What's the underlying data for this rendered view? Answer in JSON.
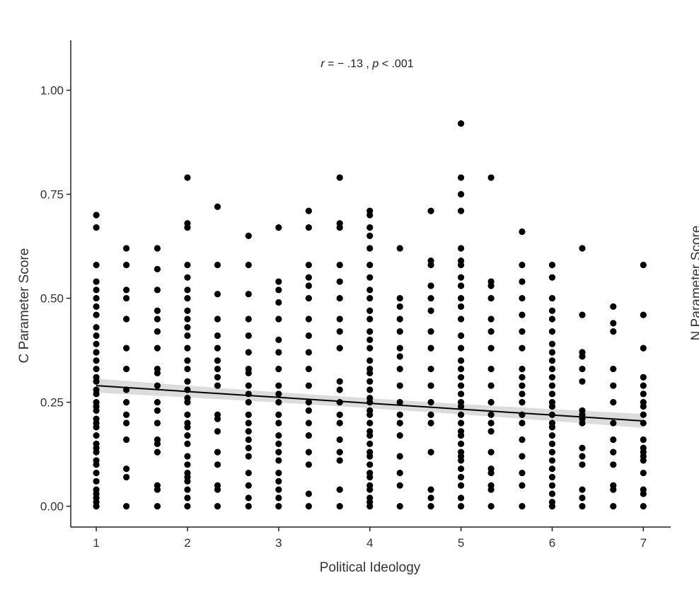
{
  "chart_data": [
    {
      "type": "scatter",
      "annotation": {
        "r_symbol": "r",
        "r_text": " = − .13 , ",
        "p_symbol": "p",
        "p_text": " < .001"
      },
      "xlabel": "Political Ideology",
      "ylabel": "C Parameter Score",
      "xlim": [
        0.72,
        7.3
      ],
      "ylim": [
        -0.05,
        1.12
      ],
      "x_ticks": [
        1,
        2,
        3,
        4,
        5,
        6,
        7
      ],
      "y_ticks": [
        0.0,
        0.25,
        0.5,
        0.75,
        1.0
      ],
      "y_tick_labels": [
        "0.00",
        "0.25",
        "0.50",
        "0.75",
        "1.00"
      ],
      "grid": false,
      "point_color": "#000000",
      "trend_line": {
        "x": [
          1,
          7
        ],
        "y": [
          0.29,
          0.205
        ],
        "color": "#000000",
        "band_color": "#d6d6d6"
      },
      "point_columns": [
        {
          "x": 1,
          "y": [
            0.0,
            0.01,
            0.02,
            0.03,
            0.04,
            0.06,
            0.08,
            0.1,
            0.11,
            0.13,
            0.14,
            0.15,
            0.17,
            0.19,
            0.2,
            0.21,
            0.23,
            0.24,
            0.25,
            0.27,
            0.28,
            0.3,
            0.31,
            0.33,
            0.35,
            0.37,
            0.39,
            0.41,
            0.43,
            0.46,
            0.48,
            0.5,
            0.52,
            0.54,
            0.58,
            0.67,
            0.7
          ]
        },
        {
          "x": 1.33,
          "y": [
            0.0,
            0.07,
            0.09,
            0.16,
            0.2,
            0.22,
            0.25,
            0.28,
            0.33,
            0.38,
            0.45,
            0.5,
            0.52,
            0.58,
            0.62
          ]
        },
        {
          "x": 1.67,
          "y": [
            0.0,
            0.04,
            0.05,
            0.13,
            0.15,
            0.16,
            0.2,
            0.23,
            0.25,
            0.29,
            0.32,
            0.33,
            0.38,
            0.42,
            0.45,
            0.47,
            0.52,
            0.57,
            0.62
          ]
        },
        {
          "x": 2,
          "y": [
            0.0,
            0.02,
            0.04,
            0.06,
            0.07,
            0.08,
            0.1,
            0.12,
            0.15,
            0.17,
            0.19,
            0.2,
            0.22,
            0.25,
            0.26,
            0.28,
            0.3,
            0.33,
            0.35,
            0.38,
            0.41,
            0.43,
            0.45,
            0.47,
            0.5,
            0.52,
            0.55,
            0.58,
            0.67,
            0.68,
            0.79
          ]
        },
        {
          "x": 2.33,
          "y": [
            0.0,
            0.04,
            0.05,
            0.1,
            0.13,
            0.18,
            0.21,
            0.22,
            0.29,
            0.31,
            0.33,
            0.35,
            0.38,
            0.41,
            0.45,
            0.51,
            0.58,
            0.72
          ]
        },
        {
          "x": 2.67,
          "y": [
            0.0,
            0.02,
            0.05,
            0.08,
            0.12,
            0.14,
            0.16,
            0.18,
            0.2,
            0.22,
            0.25,
            0.27,
            0.29,
            0.32,
            0.33,
            0.37,
            0.41,
            0.45,
            0.51,
            0.58,
            0.65
          ]
        },
        {
          "x": 3,
          "y": [
            0.0,
            0.02,
            0.04,
            0.06,
            0.08,
            0.11,
            0.13,
            0.15,
            0.17,
            0.2,
            0.22,
            0.25,
            0.27,
            0.29,
            0.33,
            0.37,
            0.4,
            0.45,
            0.49,
            0.52,
            0.54,
            0.67
          ]
        },
        {
          "x": 3.33,
          "y": [
            0.0,
            0.03,
            0.1,
            0.13,
            0.17,
            0.2,
            0.23,
            0.25,
            0.29,
            0.33,
            0.37,
            0.41,
            0.45,
            0.5,
            0.53,
            0.55,
            0.58,
            0.67,
            0.71
          ]
        },
        {
          "x": 3.67,
          "y": [
            0.0,
            0.04,
            0.11,
            0.13,
            0.16,
            0.2,
            0.22,
            0.25,
            0.28,
            0.3,
            0.38,
            0.42,
            0.45,
            0.5,
            0.54,
            0.58,
            0.67,
            0.68,
            0.79
          ]
        },
        {
          "x": 4,
          "y": [
            0.0,
            0.01,
            0.02,
            0.04,
            0.05,
            0.07,
            0.08,
            0.1,
            0.12,
            0.13,
            0.15,
            0.17,
            0.18,
            0.2,
            0.22,
            0.23,
            0.25,
            0.26,
            0.28,
            0.3,
            0.32,
            0.33,
            0.35,
            0.38,
            0.4,
            0.42,
            0.45,
            0.47,
            0.5,
            0.52,
            0.55,
            0.58,
            0.62,
            0.65,
            0.67,
            0.7,
            0.71
          ]
        },
        {
          "x": 4.33,
          "y": [
            0.0,
            0.05,
            0.08,
            0.12,
            0.17,
            0.2,
            0.22,
            0.25,
            0.29,
            0.33,
            0.36,
            0.38,
            0.42,
            0.45,
            0.48,
            0.5,
            0.62
          ]
        },
        {
          "x": 4.67,
          "y": [
            0.0,
            0.02,
            0.04,
            0.13,
            0.2,
            0.22,
            0.25,
            0.29,
            0.33,
            0.38,
            0.42,
            0.47,
            0.5,
            0.53,
            0.58,
            0.59,
            0.71
          ]
        },
        {
          "x": 5,
          "y": [
            0.0,
            0.02,
            0.05,
            0.07,
            0.09,
            0.11,
            0.12,
            0.13,
            0.15,
            0.17,
            0.18,
            0.2,
            0.22,
            0.24,
            0.25,
            0.27,
            0.29,
            0.31,
            0.33,
            0.35,
            0.38,
            0.41,
            0.45,
            0.48,
            0.5,
            0.53,
            0.55,
            0.58,
            0.59,
            0.62,
            0.71,
            0.75,
            0.79,
            0.92
          ]
        },
        {
          "x": 5.33,
          "y": [
            0.0,
            0.04,
            0.05,
            0.08,
            0.09,
            0.13,
            0.18,
            0.2,
            0.22,
            0.25,
            0.29,
            0.33,
            0.38,
            0.42,
            0.45,
            0.5,
            0.53,
            0.54,
            0.79
          ]
        },
        {
          "x": 5.67,
          "y": [
            0.0,
            0.05,
            0.08,
            0.12,
            0.16,
            0.2,
            0.22,
            0.25,
            0.27,
            0.29,
            0.31,
            0.33,
            0.38,
            0.42,
            0.46,
            0.5,
            0.54,
            0.58,
            0.66
          ]
        },
        {
          "x": 6,
          "y": [
            0.0,
            0.01,
            0.03,
            0.05,
            0.07,
            0.09,
            0.11,
            0.13,
            0.15,
            0.17,
            0.19,
            0.2,
            0.22,
            0.24,
            0.25,
            0.27,
            0.29,
            0.31,
            0.33,
            0.35,
            0.37,
            0.39,
            0.42,
            0.45,
            0.47,
            0.5,
            0.55,
            0.58
          ]
        },
        {
          "x": 6.33,
          "y": [
            0.0,
            0.02,
            0.04,
            0.1,
            0.12,
            0.14,
            0.2,
            0.21,
            0.22,
            0.23,
            0.3,
            0.33,
            0.36,
            0.37,
            0.46,
            0.62
          ]
        },
        {
          "x": 6.67,
          "y": [
            0.0,
            0.04,
            0.05,
            0.1,
            0.13,
            0.16,
            0.2,
            0.25,
            0.29,
            0.33,
            0.42,
            0.44,
            0.48
          ]
        },
        {
          "x": 7,
          "y": [
            0.0,
            0.03,
            0.04,
            0.08,
            0.11,
            0.12,
            0.13,
            0.14,
            0.16,
            0.2,
            0.22,
            0.24,
            0.25,
            0.27,
            0.29,
            0.31,
            0.38,
            0.46,
            0.58
          ]
        }
      ]
    }
  ],
  "right_panel": {
    "ylabel": "N Parameter Score"
  }
}
